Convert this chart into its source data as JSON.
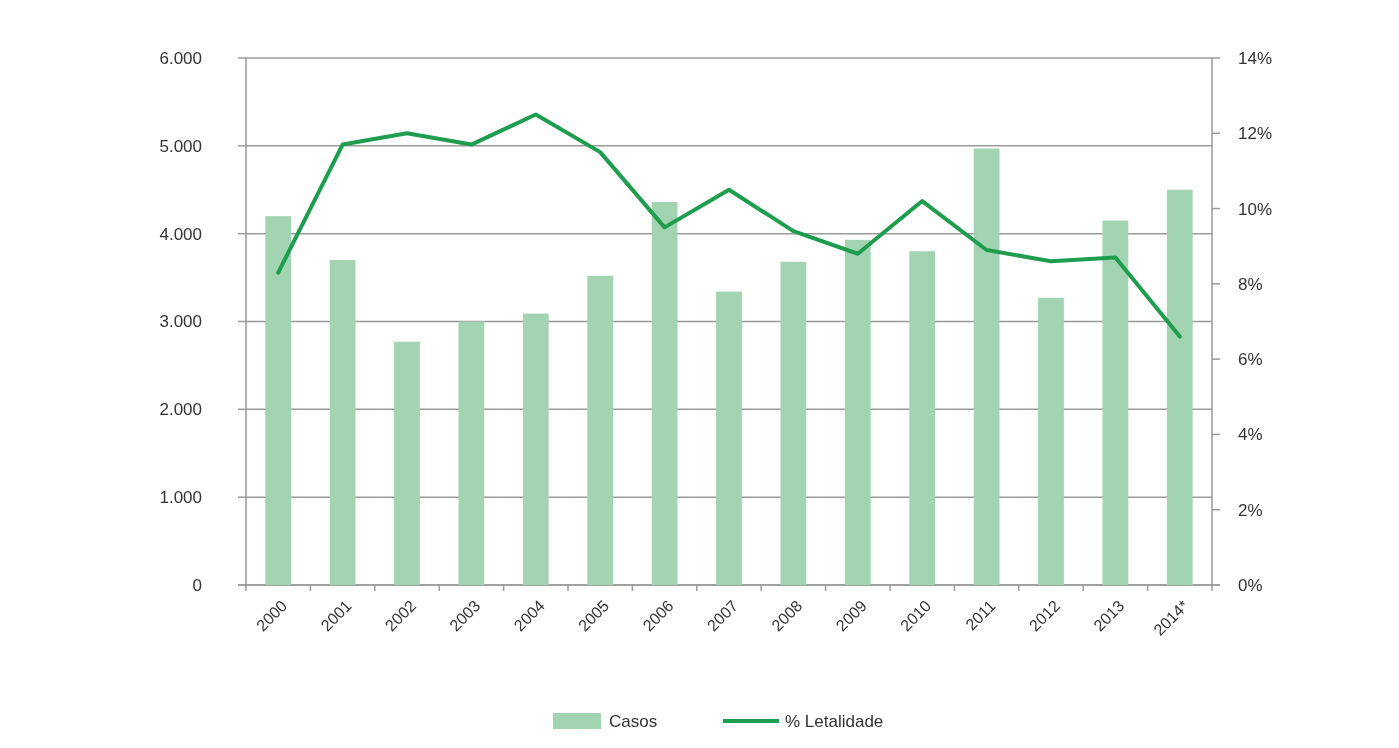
{
  "chart_data": {
    "type": "bar",
    "categories": [
      "2000",
      "2001",
      "2002",
      "2003",
      "2004",
      "2005",
      "2006",
      "2007",
      "2008",
      "2009",
      "2010",
      "2011",
      "2012",
      "2013",
      "2014*"
    ],
    "series": [
      {
        "name": "Casos",
        "color": "#a3d4b2",
        "values": [
          4200,
          3700,
          2770,
          3000,
          3090,
          3520,
          4360,
          3340,
          3680,
          3930,
          3800,
          4970,
          3270,
          4150,
          4500
        ]
      },
      {
        "name": "% Letalidade",
        "type": "line",
        "axis": "y2",
        "color": "#1f9d4f",
        "values": [
          8.3,
          11.7,
          12.0,
          11.7,
          12.5,
          11.5,
          9.5,
          10.5,
          9.4,
          8.8,
          10.2,
          8.9,
          8.6,
          8.7,
          6.6
        ]
      }
    ],
    "ylim": [
      0,
      6000
    ],
    "yticks": [
      {
        "value": 0,
        "label": "0"
      },
      {
        "value": 1000,
        "label": "1.000"
      },
      {
        "value": 2000,
        "label": "2.000"
      },
      {
        "value": 3000,
        "label": "3.000"
      },
      {
        "value": 4000,
        "label": "4.000"
      },
      {
        "value": 5000,
        "label": "5.000"
      },
      {
        "value": 6000,
        "label": "6.000"
      }
    ],
    "y2lim": [
      0,
      14
    ],
    "y2ticks": [
      {
        "value": 0,
        "label": "0%"
      },
      {
        "value": 2,
        "label": "2%"
      },
      {
        "value": 4,
        "label": "4%"
      },
      {
        "value": 6,
        "label": "6%"
      },
      {
        "value": 8,
        "label": "8%"
      },
      {
        "value": 10,
        "label": "10%"
      },
      {
        "value": 12,
        "label": "12%"
      },
      {
        "value": 14,
        "label": "14%"
      }
    ],
    "grid": "y",
    "legend": "bottom",
    "marker": "none",
    "line_style": "solid"
  }
}
